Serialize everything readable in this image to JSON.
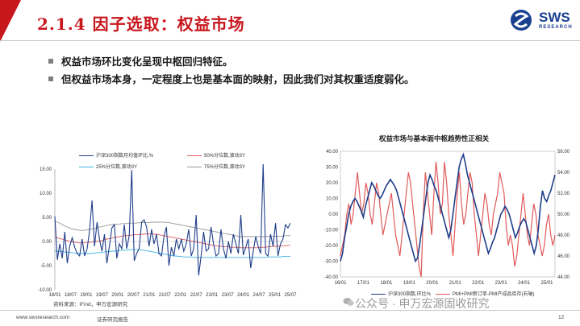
{
  "header": {
    "title": "2.1.4 因子选取：权益市场",
    "logo_text": "SWS",
    "logo_sub": "RESEARCH",
    "logo_color": "#1a3f8f",
    "accent_color": "#c8161d"
  },
  "bullets": [
    "权益市场环比变化呈现中枢回归特征。",
    "但权益市场本身，一定程度上也是基本面的映射，因此我们对其权重适度弱化。"
  ],
  "chart_data": [
    {
      "type": "line",
      "title": "",
      "legend": [
        "沪深300指数月均值环比,%",
        "50%分位数,滚动3Y",
        "25%分位数,滚动3Y",
        "75%分位数,滚动3Y"
      ],
      "colors": [
        "#1f3e8a",
        "#e05a5a",
        "#3bb4e6",
        "#999999"
      ],
      "x_ticks": [
        "18/01",
        "18/07",
        "19/01",
        "19/07",
        "20/01",
        "20/07",
        "21/01",
        "21/07",
        "22/01",
        "22/07",
        "23/01",
        "23/07",
        "24/01",
        "24/07",
        "25/01",
        "25/07"
      ],
      "y_ticks": [
        "15.00",
        "10.00",
        "5.00",
        "0.00",
        "-5.00",
        "-10.00"
      ],
      "ylim": [
        -10,
        15
      ],
      "series": [
        {
          "values": [
            5.2,
            -3.8,
            -0.5,
            -3.5,
            2.0,
            -4.5,
            -1.0,
            0.8,
            -1.2,
            -2.5,
            -3.0,
            0.5,
            -3.0,
            -1.5,
            2.2,
            8.5,
            -1.0,
            4.0,
            0.5,
            -2.0,
            1.5,
            -4.5,
            -1.0,
            2.8,
            3.5,
            -3.5,
            -0.5,
            -1.5,
            3.5,
            -1.5,
            1.2,
            14.8,
            -4.0,
            -2.5,
            -1.5,
            4.0,
            4.5,
            3.0,
            -1.0,
            2.5,
            -0.5,
            1.5,
            -2.5,
            -3.0,
            1.0,
            3.0,
            -5.0,
            -1.2,
            -3.0,
            0.5,
            -1.5,
            0.5,
            -2.0,
            -0.5,
            2.5,
            -3.0,
            -1.5,
            5.5,
            -7.0,
            -3.0,
            2.0,
            -2.0,
            -1.5,
            3.0,
            -0.5,
            -3.0,
            -2.5,
            2.5,
            -1.5,
            -3.5,
            0.0,
            -2.5,
            1.5,
            -0.5,
            -2.5,
            5.5,
            -2.8,
            -1.2,
            0.5,
            -5.5,
            -2.0,
            1.0,
            -1.0,
            -2.5,
            16.0,
            -2.5,
            -3.0,
            1.5,
            -1.0,
            3.8,
            -3.0,
            -0.5,
            0.5,
            3.5,
            2.8,
            3.8
          ]
        },
        {
          "values": [
            0.8,
            0.8,
            0.6,
            0.5,
            0.3,
            0.2,
            0.0,
            -0.1,
            -0.2,
            -0.2,
            -0.3,
            -0.3,
            -0.3,
            -0.2,
            -0.2,
            -0.1,
            -0.1,
            0.0,
            0.1,
            0.2,
            0.4,
            0.5,
            0.6,
            0.7,
            0.8,
            0.9,
            1.0,
            1.1,
            1.2,
            1.2,
            1.3,
            1.3,
            1.4,
            1.4,
            1.4,
            1.5,
            1.5,
            1.6,
            1.6,
            1.6,
            1.5,
            1.5,
            1.4,
            1.3,
            1.2,
            1.1,
            1.0,
            0.9,
            0.8,
            0.7,
            0.6,
            0.5,
            0.4,
            0.3,
            0.2,
            0.1,
            0.0,
            -0.1,
            -0.2,
            -0.3,
            -0.4,
            -0.5,
            -0.6,
            -0.7,
            -0.8,
            -0.9,
            -1.0,
            -1.0,
            -1.1,
            -1.1,
            -1.1,
            -1.2,
            -1.2,
            -1.2,
            -1.2,
            -1.3,
            -1.3,
            -1.3,
            -1.3,
            -1.3,
            -1.3,
            -1.3,
            -1.3,
            -1.2,
            -1.2,
            -1.2,
            -1.1,
            -1.1,
            -1.0,
            -1.0,
            -1.0,
            -0.9,
            -0.9,
            -0.9,
            -0.8,
            -0.8
          ]
        },
        {
          "values": [
            -2.0,
            -2.0,
            -2.1,
            -2.1,
            -2.2,
            -2.2,
            -2.3,
            -2.3,
            -2.4,
            -2.4,
            -2.5,
            -2.5,
            -2.5,
            -2.5,
            -2.5,
            -2.4,
            -2.4,
            -2.3,
            -2.3,
            -2.2,
            -2.2,
            -2.1,
            -2.1,
            -2.0,
            -2.0,
            -1.9,
            -1.9,
            -1.8,
            -1.8,
            -1.8,
            -1.7,
            -1.7,
            -1.7,
            -1.7,
            -1.7,
            -1.8,
            -1.8,
            -1.9,
            -2.0,
            -2.1,
            -2.2,
            -2.3,
            -2.4,
            -2.5,
            -2.6,
            -2.7,
            -2.8,
            -2.9,
            -3.0,
            -3.0,
            -3.1,
            -3.1,
            -3.2,
            -3.2,
            -3.2,
            -3.2,
            -3.3,
            -3.3,
            -3.3,
            -3.3,
            -3.3,
            -3.3,
            -3.3,
            -3.3,
            -3.3,
            -3.3,
            -3.3,
            -3.3,
            -3.3,
            -3.3,
            -3.3,
            -3.3,
            -3.3,
            -3.3,
            -3.3,
            -3.3,
            -3.3,
            -3.3,
            -3.3,
            -3.3,
            -3.3,
            -3.3,
            -3.3,
            -3.3,
            -3.3,
            -3.3,
            -3.2,
            -3.2,
            -3.2,
            -3.2,
            -3.2,
            -3.2,
            -3.1,
            -3.1,
            -3.1,
            -3.1
          ]
        },
        {
          "values": [
            4.2,
            4.0,
            3.8,
            3.5,
            3.2,
            3.0,
            2.8,
            2.6,
            2.5,
            2.4,
            2.3,
            2.3,
            2.3,
            2.4,
            2.5,
            2.6,
            2.7,
            2.8,
            3.0,
            3.1,
            3.2,
            3.3,
            3.4,
            3.5,
            3.5,
            3.6,
            3.6,
            3.7,
            3.7,
            3.7,
            3.8,
            3.8,
            3.8,
            3.8,
            3.9,
            3.9,
            3.9,
            3.9,
            3.9,
            4.0,
            4.0,
            4.0,
            4.0,
            4.0,
            4.0,
            3.9,
            3.9,
            3.8,
            3.7,
            3.6,
            3.5,
            3.4,
            3.3,
            3.2,
            3.1,
            3.0,
            2.9,
            2.8,
            2.7,
            2.6,
            2.5,
            2.4,
            2.3,
            2.2,
            2.1,
            2.0,
            1.9,
            1.8,
            1.7,
            1.6,
            1.5,
            1.4,
            1.3,
            1.2,
            1.1,
            1.0,
            1.0,
            1.0,
            1.0,
            1.0,
            1.0,
            1.0,
            1.0,
            1.0,
            1.0,
            1.0,
            1.1,
            1.1,
            1.1,
            1.1,
            1.1,
            1.1,
            1.1,
            1.2,
            1.2,
            1.2
          ]
        }
      ]
    },
    {
      "type": "line",
      "title": "权益市场与基本面中枢趋势性正相关",
      "legend": [
        "沪深300指数,环比%",
        "PMI+PMI新订单-PMI产成品库存(右轴)"
      ],
      "colors": [
        "#1f3e8a",
        "#e05a5a"
      ],
      "x_ticks": [
        "16/01",
        "17/01",
        "18/01",
        "19/01",
        "20/01",
        "21/01",
        "22/01",
        "23/01",
        "24/01",
        "25/01"
      ],
      "y_ticks_left": [
        "40.00",
        "30.00",
        "20.00",
        "10.00",
        "0.00",
        "-10.00",
        "-20.00",
        "-30.00",
        "-40.00"
      ],
      "y_ticks_right": [
        "56.00",
        "54.00",
        "52.00",
        "50.00",
        "48.00",
        "46.00",
        "44.00"
      ],
      "ylim_left": [
        -40,
        40
      ],
      "ylim_right": [
        44,
        56
      ],
      "series": [
        {
          "name": "沪深300指数,环比%",
          "values": [
            -30,
            -25,
            -15,
            -8,
            0,
            5,
            8,
            10,
            8,
            5,
            2,
            -2,
            5,
            10,
            15,
            20,
            18,
            15,
            12,
            10,
            12,
            15,
            18,
            20,
            22,
            20,
            18,
            15,
            10,
            5,
            0,
            -5,
            -10,
            -15,
            -20,
            -25,
            -30,
            -28,
            -20,
            -10,
            0,
            10,
            20,
            25,
            22,
            18,
            15,
            10,
            5,
            0,
            -5,
            -10,
            -15,
            -10,
            0,
            10,
            20,
            30,
            35,
            38,
            32,
            25,
            20,
            15,
            10,
            5,
            0,
            -5,
            -10,
            -15,
            -20,
            -25,
            -22,
            -18,
            -15,
            -10,
            -5,
            0,
            2,
            5,
            3,
            0,
            -5,
            -10,
            -15,
            -12,
            -8,
            -5,
            -3,
            -5,
            -10,
            -15,
            -20,
            -25,
            -20,
            -10,
            5,
            15,
            10,
            8,
            12,
            15,
            20,
            25
          ]
        },
        {
          "name": "PMI+PMI新订单-PMI产成品库存(右轴)",
          "values": [
            46,
            47,
            48,
            50,
            51,
            49,
            50,
            52,
            54,
            52,
            50,
            51,
            53,
            52,
            50,
            49,
            51,
            53,
            52,
            50,
            48,
            49,
            50,
            51,
            52,
            50,
            48,
            47,
            46,
            48,
            50,
            52,
            54,
            53,
            51,
            49,
            47,
            45,
            44,
            50,
            54,
            52,
            50,
            48,
            52,
            55,
            53,
            50,
            51,
            55,
            53,
            50,
            48,
            46,
            49,
            52,
            54,
            51,
            49,
            50,
            52,
            54,
            53,
            50,
            48,
            46,
            48,
            50,
            52,
            51,
            49,
            48,
            50,
            51,
            52,
            54,
            53,
            52,
            49,
            47,
            48,
            47,
            45,
            46,
            48,
            50,
            52,
            50,
            48,
            47,
            49,
            51,
            50,
            48,
            47,
            46,
            47,
            49,
            50,
            48,
            47,
            48
          ]
        }
      ]
    }
  ],
  "sources": {
    "left": "资料来源：iFind，申万宏源研究",
    "right": "资料来源：iFind，申万宏源研究"
  },
  "footer": {
    "url": "www.swsresearch.com",
    "label": "证券研究报告",
    "page": "12",
    "watermark": "公众号 · 申万宏源固收研究"
  }
}
